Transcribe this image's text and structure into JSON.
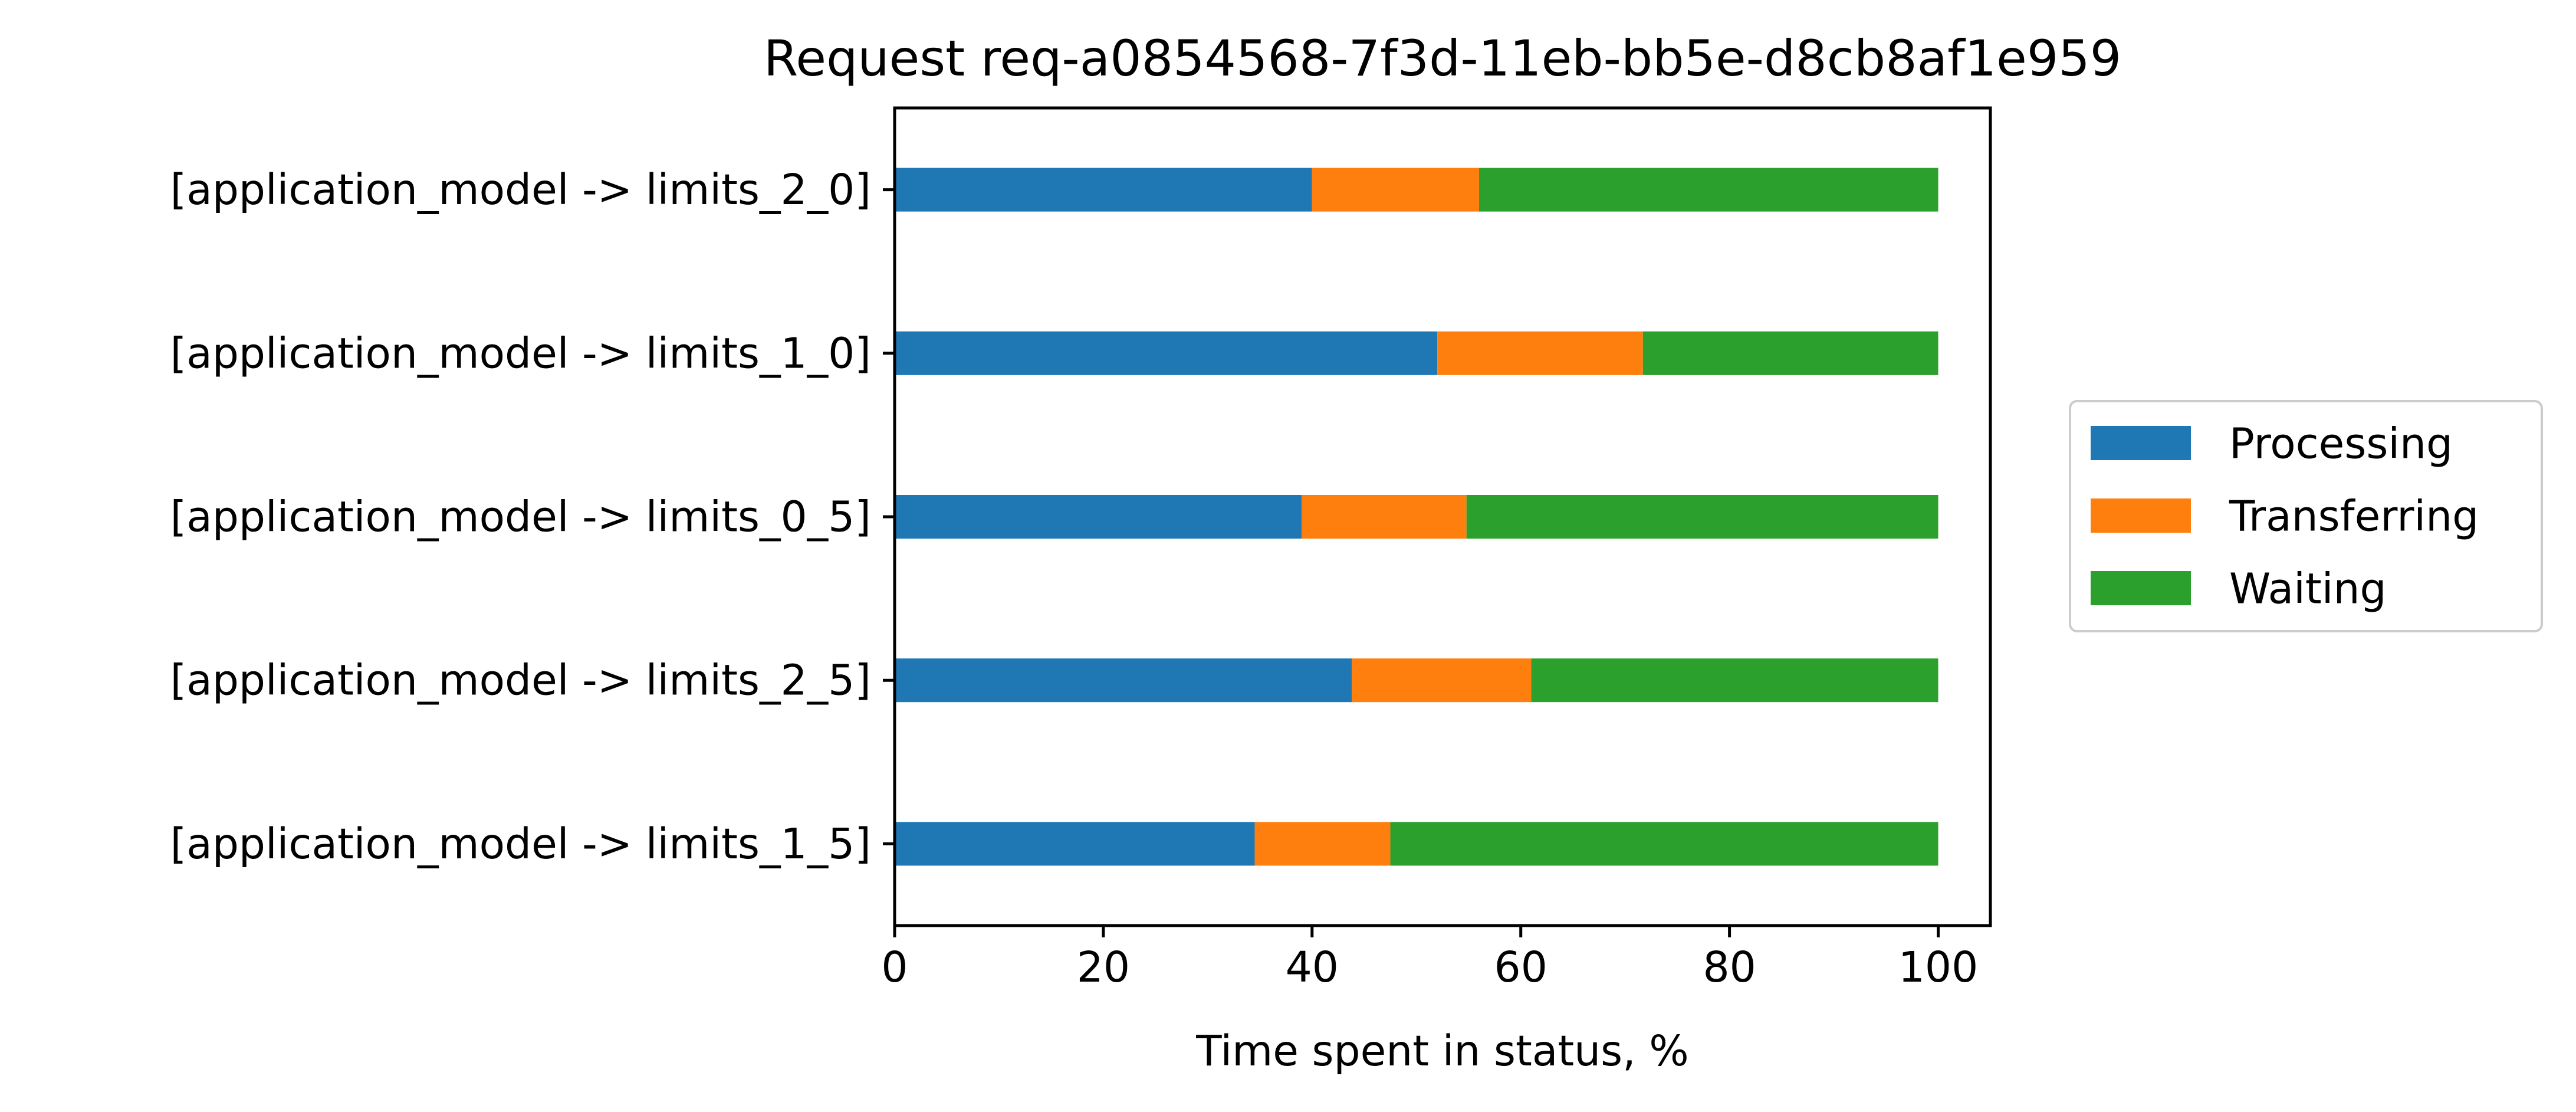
{
  "chart_data": {
    "type": "bar",
    "orientation": "horizontal",
    "stacked": true,
    "title": "Request req-a0854568-7f3d-11eb-bb5e-d8cb8af1e959",
    "xlabel": "Time spent in status, %",
    "ylabel": "",
    "xlim": [
      0,
      105
    ],
    "xticks": [
      0,
      20,
      40,
      60,
      80,
      100
    ],
    "grid": false,
    "legend_position": "right",
    "categories": [
      "[application_model -> limits_2_0]",
      "[application_model -> limits_1_0]",
      "[application_model -> limits_0_5]",
      "[application_model -> limits_2_5]",
      "[application_model -> limits_1_5]"
    ],
    "series": [
      {
        "name": "Processing",
        "color": "#1f77b4",
        "values": [
          40.0,
          52.0,
          39.0,
          43.8,
          34.5
        ]
      },
      {
        "name": "Transferring",
        "color": "#ff7f0e",
        "values": [
          16.0,
          19.7,
          15.8,
          17.2,
          13.0
        ]
      },
      {
        "name": "Waiting",
        "color": "#2ca02c",
        "values": [
          44.0,
          28.3,
          45.2,
          39.0,
          52.5
        ]
      }
    ]
  }
}
